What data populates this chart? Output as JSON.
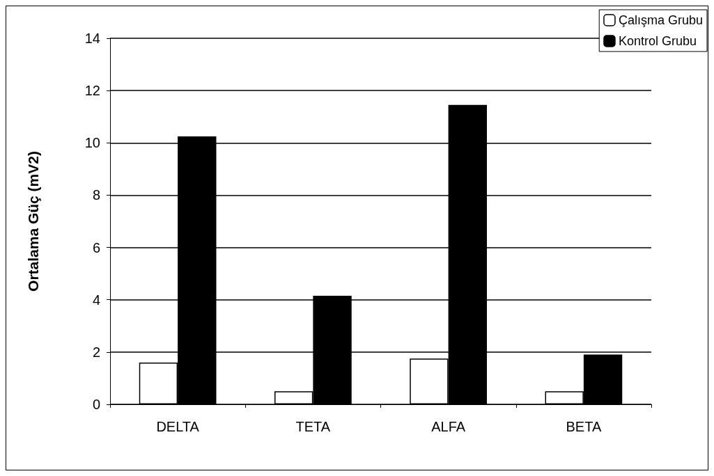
{
  "chart_data": {
    "type": "bar",
    "ylabel": "Ortalama Güç (mV2)",
    "categories": [
      "DELTA",
      "TETA",
      "ALFA",
      "BETA"
    ],
    "series": [
      {
        "name": "Çalışma Grubu",
        "color": "#ffffff",
        "values": [
          1.6,
          0.5,
          1.75,
          0.5
        ]
      },
      {
        "name": "Kontrol Grubu",
        "color": "#000000",
        "values": [
          10.25,
          4.15,
          11.45,
          1.9
        ]
      }
    ],
    "ylim": [
      0,
      14
    ],
    "yticks": [
      0,
      2,
      4,
      6,
      8,
      10,
      12,
      14
    ],
    "grid": "y",
    "legend": "top right"
  }
}
